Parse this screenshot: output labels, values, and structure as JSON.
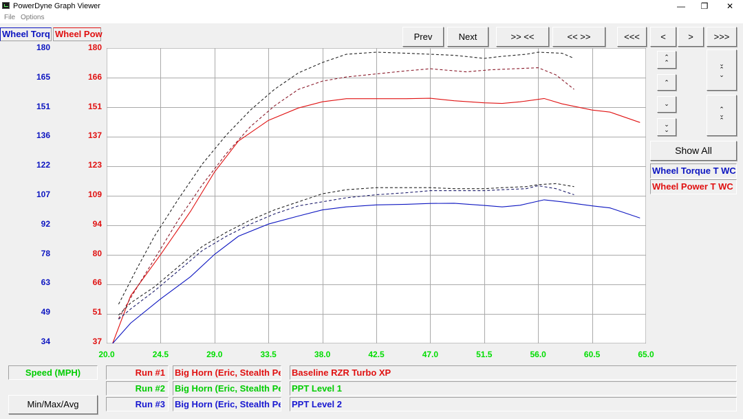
{
  "window": {
    "title": "PowerDyne Graph Viewer",
    "minimize_glyph": "—",
    "maximize_glyph": "❐",
    "close_glyph": "✕"
  },
  "menu": {
    "file": "File",
    "options": "Options"
  },
  "tabs": {
    "torque": "Wheel Torq",
    "power": "Wheel Pow"
  },
  "nav": {
    "prev": "Prev",
    "next": "Next",
    "zoom_in": ">> <<",
    "zoom_out": "<< >>",
    "far_left": "<<<",
    "left": "<",
    "right": ">",
    "far_right": ">>>"
  },
  "side": {
    "show_all": "Show All",
    "legend_torque": "Wheel Torque T WC",
    "legend_power": "Wheel Power T WC ("
  },
  "colors": {
    "torque": "#0b14c0",
    "power": "#e01010",
    "speed": "#00dd00",
    "grid": "#a9a9a9"
  },
  "bottom": {
    "speed_label": "Speed (MPH)",
    "minmax_button": "Min/Max/Avg",
    "runs": [
      {
        "label": "Run #1",
        "vehicle": "Big Horn (Eric, Stealth Per",
        "tune": "Baseline RZR Turbo XP",
        "color": "#e01010"
      },
      {
        "label": "Run #2",
        "vehicle": "Big Horn (Eric, Stealth Per",
        "tune": "PPT Level 1",
        "color": "#00cc00"
      },
      {
        "label": "Run #3",
        "vehicle": "Big Horn (Eric, Stealth Per",
        "tune": "PPT Level 2",
        "color": "#1818d0"
      }
    ]
  },
  "chart_data": {
    "type": "line",
    "title": "",
    "xlabel": "Speed (MPH)",
    "x_ticks": [
      "20.0",
      "24.5",
      "29.0",
      "33.5",
      "38.0",
      "42.5",
      "47.0",
      "51.5",
      "56.0",
      "60.5",
      "65.0"
    ],
    "xlim": [
      20.0,
      65.0
    ],
    "y_left": {
      "label": "Wheel Torq",
      "ticks": [
        "180",
        "165",
        "151",
        "136",
        "122",
        "107",
        "92",
        "78",
        "63",
        "49",
        "34"
      ],
      "range": [
        34,
        180
      ]
    },
    "y_right": {
      "label": "Wheel Pow",
      "ticks": [
        "180",
        "166",
        "151",
        "137",
        "123",
        "109",
        "94",
        "80",
        "66",
        "51",
        "37"
      ],
      "range": [
        37,
        180
      ]
    },
    "grid": true,
    "series": [
      {
        "name": "Wheel Power T WC (",
        "axis": "right",
        "style": "solid",
        "color": "#e01010",
        "x": [
          20.5,
          22,
          24.5,
          27,
          29,
          31,
          33.5,
          36,
          38,
          40,
          42.5,
          45,
          47,
          49,
          51.5,
          53,
          54.5,
          56.5,
          58,
          60.5,
          62,
          64.5
        ],
        "y": [
          37,
          60,
          80,
          101,
          120,
          135,
          145,
          151,
          154,
          155.5,
          155.5,
          155.5,
          155.7,
          154.5,
          153.5,
          153.2,
          154,
          155.6,
          153,
          150,
          149,
          144
        ]
      },
      {
        "name": "",
        "axis": "right",
        "style": "dash",
        "color": "#8a1a2a",
        "x": [
          21,
          22,
          24,
          26,
          28,
          30,
          32,
          34,
          36,
          38,
          40,
          42.5,
          45,
          47,
          48,
          50,
          52,
          54,
          56,
          57.5,
          59
        ],
        "y": [
          49,
          59,
          78,
          97,
          114,
          129,
          142,
          152,
          160,
          164,
          166,
          167.5,
          169,
          170,
          169.5,
          168.5,
          169.5,
          170,
          170.5,
          167,
          160
        ]
      },
      {
        "name": "",
        "axis": "right",
        "style": "dash",
        "color": "#222222",
        "x": [
          21,
          22.5,
          24,
          26,
          28,
          30,
          32,
          34,
          36,
          38,
          40,
          42.5,
          45,
          47,
          49,
          51.5,
          53,
          55,
          56,
          58,
          59
        ],
        "y": [
          56,
          73,
          89,
          107,
          124,
          138,
          150,
          160,
          168,
          173,
          177,
          178,
          177.5,
          177,
          176.5,
          175,
          176,
          177,
          178,
          177.5,
          175
        ]
      },
      {
        "name": "Wheel Torque T WC",
        "axis": "left",
        "style": "solid",
        "color": "#0b14c0",
        "x": [
          20.5,
          22,
          24.5,
          27,
          29,
          31,
          33.5,
          36,
          38,
          40,
          42.5,
          45,
          47,
          49,
          51.5,
          53,
          54.5,
          56.5,
          58,
          60.5,
          62,
          64.5
        ],
        "y": [
          34,
          44,
          56,
          67,
          78,
          87,
          93,
          97,
          100,
          101.5,
          102.5,
          102.8,
          103.2,
          103.3,
          102.2,
          101.5,
          102.3,
          105,
          104,
          102,
          101,
          96
        ]
      },
      {
        "name": "",
        "axis": "left",
        "style": "dash",
        "color": "#1a1a6a",
        "x": [
          21,
          22,
          24,
          26,
          28,
          30,
          32,
          34,
          36,
          38,
          40,
          42.5,
          45,
          47,
          49,
          51.5,
          53,
          55,
          56,
          57.5,
          59
        ],
        "y": [
          46,
          51,
          60,
          70,
          80,
          87,
          93,
          98,
          102,
          104,
          106,
          107.5,
          108.5,
          109.5,
          109.5,
          109.5,
          110,
          110.5,
          112,
          110.5,
          107.5
        ]
      },
      {
        "name": "",
        "axis": "left",
        "style": "dash",
        "color": "#222222",
        "x": [
          21,
          22,
          24,
          26,
          28,
          30,
          32,
          34,
          36,
          38,
          40,
          42.5,
          45,
          47,
          49,
          51.5,
          53,
          55,
          56,
          57.5,
          59
        ],
        "y": [
          48,
          54,
          62,
          72,
          82,
          89,
          95,
          100,
          104,
          108,
          110,
          111,
          111,
          111,
          110.5,
          110.5,
          111,
          111.5,
          112.5,
          113,
          111.5
        ]
      }
    ]
  }
}
